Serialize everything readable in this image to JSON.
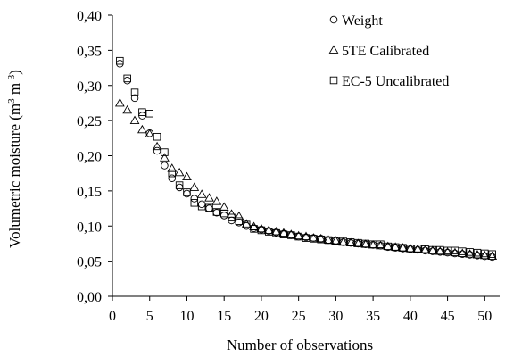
{
  "chart_data": {
    "type": "scatter",
    "title": "",
    "xlabel": "Number of observations",
    "ylabel": {
      "pre": "Volumetric moisture (m",
      "sup1": "3",
      "mid": " m",
      "sup2": "-3",
      "post": ")"
    },
    "xlim": [
      0,
      52
    ],
    "ylim": [
      0,
      0.4
    ],
    "xticks": [
      0,
      5,
      10,
      15,
      20,
      25,
      30,
      35,
      40,
      45,
      50
    ],
    "xtick_labels": [
      "0",
      "5",
      "10",
      "15",
      "20",
      "25",
      "30",
      "35",
      "40",
      "45",
      "50"
    ],
    "yticks": [
      0,
      0.05,
      0.1,
      0.15,
      0.2,
      0.25,
      0.3,
      0.35,
      0.4
    ],
    "ytick_labels": [
      "0,00",
      "0,05",
      "0,10",
      "0,15",
      "0,20",
      "0,25",
      "0,30",
      "0,35",
      "0,40"
    ],
    "grid": false,
    "legend_position": "top-right",
    "x": [
      1,
      2,
      3,
      4,
      5,
      6,
      7,
      8,
      9,
      10,
      11,
      12,
      13,
      14,
      15,
      16,
      17,
      18,
      19,
      20,
      21,
      22,
      23,
      24,
      25,
      26,
      27,
      28,
      29,
      30,
      31,
      32,
      33,
      34,
      35,
      36,
      37,
      38,
      39,
      40,
      41,
      42,
      43,
      44,
      45,
      46,
      47,
      48,
      49,
      50,
      51
    ],
    "series": [
      {
        "name": "Weight",
        "marker": "circle",
        "values": [
          0.331,
          0.307,
          0.282,
          0.257,
          0.232,
          0.207,
          0.186,
          0.168,
          0.155,
          0.146,
          0.139,
          0.131,
          0.125,
          0.119,
          0.115,
          0.108,
          0.105,
          0.1,
          0.097,
          0.095,
          0.093,
          0.091,
          0.089,
          0.087,
          0.085,
          0.084,
          0.083,
          0.082,
          0.08,
          0.079,
          0.077,
          0.076,
          0.075,
          0.074,
          0.073,
          0.072,
          0.07,
          0.069,
          0.068,
          0.067,
          0.066,
          0.065,
          0.064,
          0.063,
          0.062,
          0.061,
          0.06,
          0.059,
          0.058,
          0.057,
          0.056
        ]
      },
      {
        "name": "5TE Calibrated",
        "marker": "triangle",
        "values": [
          0.275,
          0.265,
          0.25,
          0.237,
          0.231,
          0.213,
          0.197,
          0.182,
          0.176,
          0.17,
          0.155,
          0.145,
          0.14,
          0.135,
          0.127,
          0.117,
          0.114,
          0.103,
          0.099,
          0.096,
          0.094,
          0.092,
          0.09,
          0.088,
          0.086,
          0.085,
          0.083,
          0.082,
          0.08,
          0.079,
          0.077,
          0.076,
          0.075,
          0.074,
          0.073,
          0.072,
          0.071,
          0.07,
          0.069,
          0.068,
          0.067,
          0.066,
          0.065,
          0.064,
          0.063,
          0.062,
          0.061,
          0.06,
          0.059,
          0.058,
          0.057
        ]
      },
      {
        "name": "EC-5 Uncalibrated",
        "marker": "square",
        "values": [
          0.335,
          0.31,
          0.29,
          0.262,
          0.26,
          0.227,
          0.205,
          0.175,
          0.158,
          0.148,
          0.133,
          0.128,
          0.126,
          0.12,
          0.118,
          0.112,
          0.107,
          0.102,
          0.096,
          0.094,
          0.092,
          0.09,
          0.088,
          0.087,
          0.085,
          0.083,
          0.082,
          0.081,
          0.08,
          0.079,
          0.078,
          0.077,
          0.076,
          0.075,
          0.074,
          0.074,
          0.071,
          0.07,
          0.069,
          0.068,
          0.068,
          0.067,
          0.066,
          0.066,
          0.065,
          0.065,
          0.064,
          0.063,
          0.062,
          0.061,
          0.06
        ]
      }
    ]
  }
}
